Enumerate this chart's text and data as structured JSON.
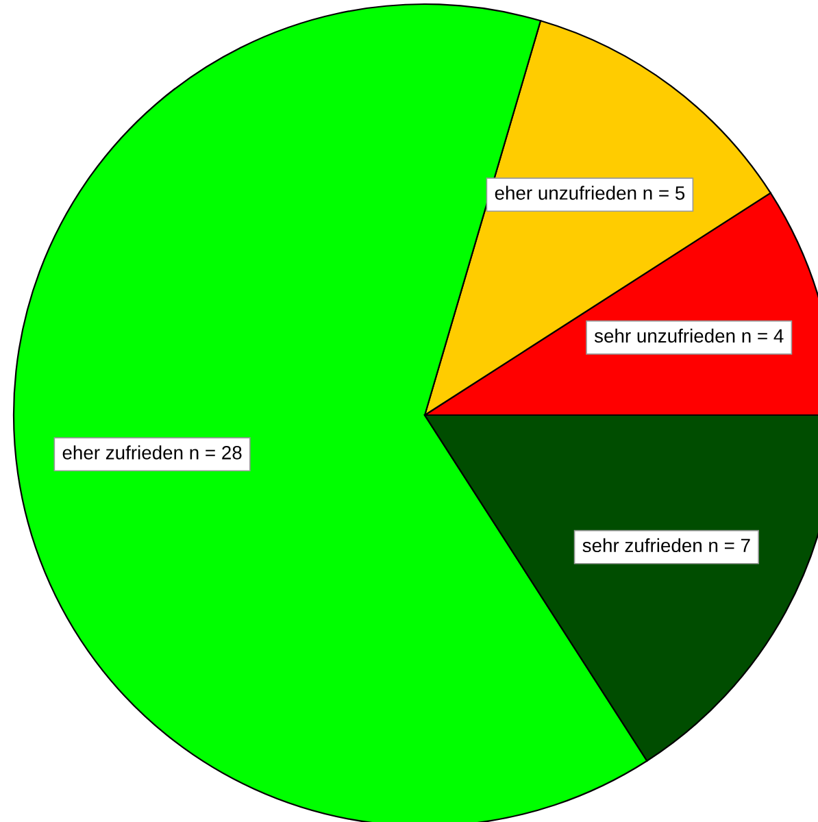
{
  "chart_data": {
    "type": "pie",
    "categories": [
      "sehr unzufrieden n = 4",
      "eher unzufrieden n = 5",
      "eher zufrieden n = 28",
      "sehr zufrieden n = 7"
    ],
    "values": [
      4,
      5,
      28,
      7
    ],
    "colors": [
      "#ff0000",
      "#ffcc00",
      "#00ff00",
      "#004d00"
    ],
    "legend": false
  }
}
